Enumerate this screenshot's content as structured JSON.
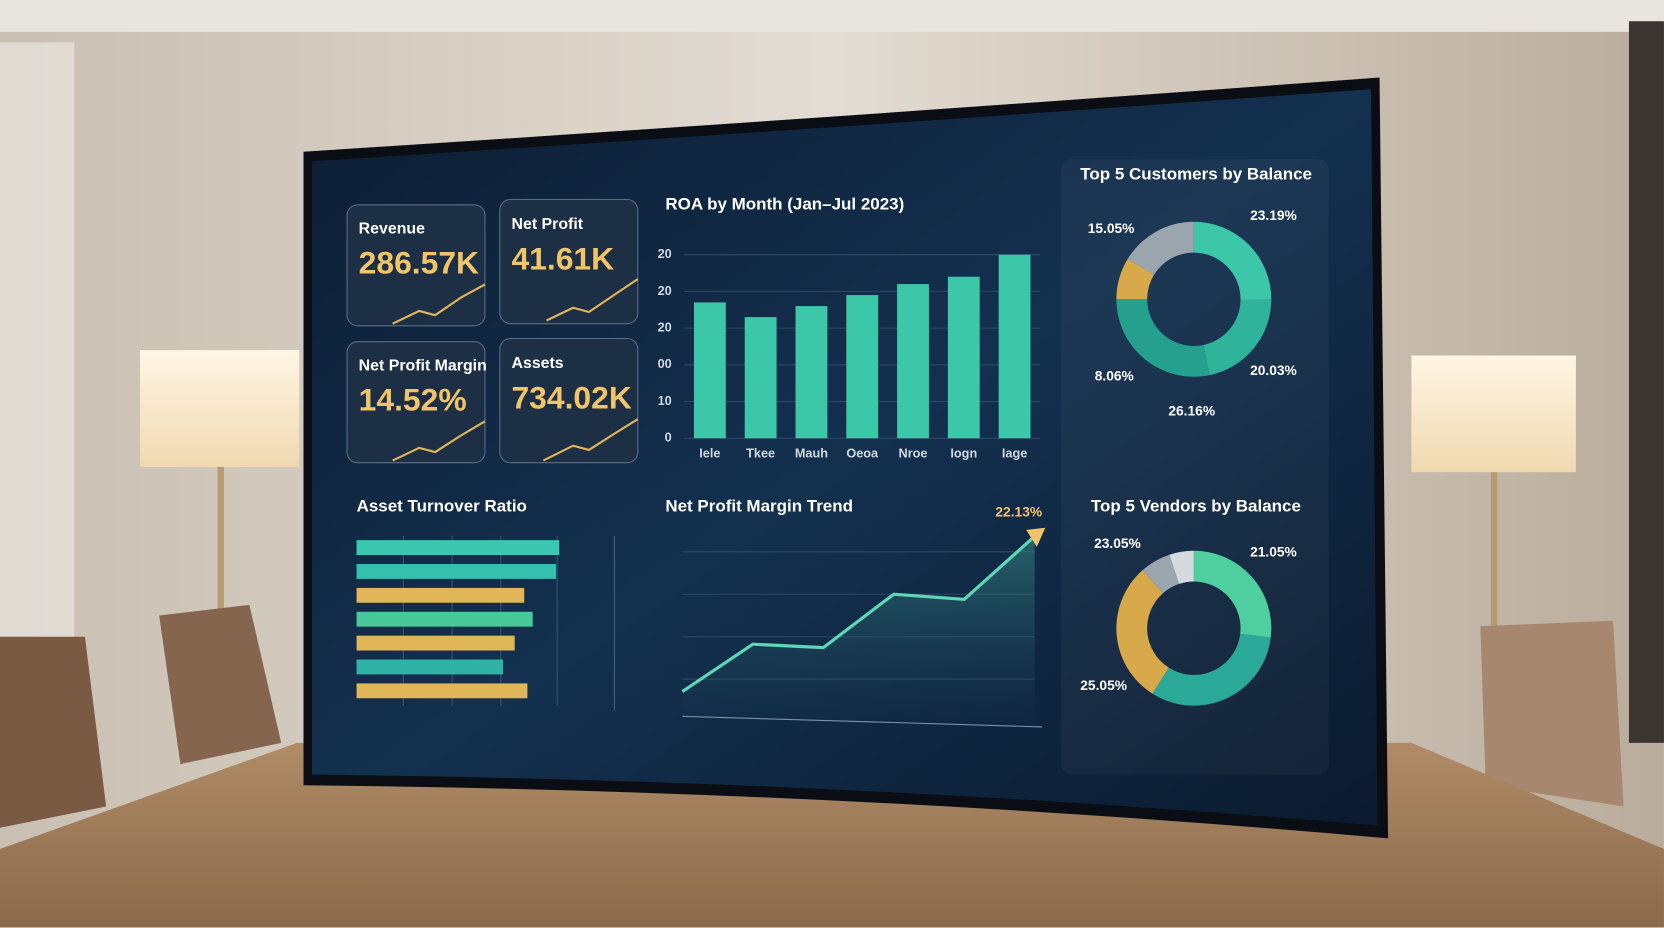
{
  "kpis": [
    {
      "label": "Revenue",
      "value": "286.57K"
    },
    {
      "label": "Net Profit",
      "value": "41.61K"
    },
    {
      "label": "Net Profit Margin",
      "value": "14.52%"
    },
    {
      "label": "Assets",
      "value": "734.02K"
    }
  ],
  "chart_data": [
    {
      "type": "bar",
      "title": "ROA by Month (Jan–Jul 2023)",
      "categories": [
        "Iele",
        "Tkee",
        "Mauh",
        "Oeoa",
        "Nroe",
        "Iogn",
        "Iage"
      ],
      "values": [
        37,
        33,
        36,
        39,
        42,
        44,
        50
      ],
      "color": "#3cc7a8",
      "ylim": [
        0,
        50
      ],
      "yticks": [
        0,
        10,
        {
          "value": 20,
          "label": "00"
        },
        {
          "value": 30,
          "label": "20"
        },
        {
          "value": 40,
          "label": "20"
        },
        {
          "value": 50,
          "label": "20"
        }
      ],
      "grid": true
    },
    {
      "type": "hbar",
      "title": "Asset Turnover Ratio",
      "values": [
        191,
        188,
        158,
        166,
        149,
        138,
        161
      ],
      "colors": [
        "#3cc7b0",
        "#35bfae",
        "#e0b658",
        "#47c99a",
        "#e0b658",
        "#2fb3a6",
        "#e0b658"
      ],
      "xlim": [
        0,
        200
      ]
    },
    {
      "type": "line",
      "title": "Net Profit Margin Trend",
      "values": [
        4.1,
        9.6,
        9.2,
        15.4,
        14.8,
        22.13
      ],
      "color": "#5fd6b6",
      "annotation": "22.13%",
      "ylim": [
        0,
        25
      ]
    },
    {
      "type": "donut",
      "title": "Top 5 Customers by Balance",
      "segments": [
        {
          "value": 23.19,
          "label": "23.19%",
          "color": "#3cc7a8"
        },
        {
          "value": 20.03,
          "label": "20.03%",
          "color": "#2fb39a"
        },
        {
          "value": 26.16,
          "label": "26.16%",
          "color": "#26a08e"
        },
        {
          "value": 8.06,
          "label": "8.06%",
          "color": "#d8a94b"
        },
        {
          "value": 15.05,
          "label": "15.05%",
          "color": "#9aa5ae"
        }
      ]
    },
    {
      "type": "donut",
      "title": "Top 5 Vendors by Balance",
      "segments": [
        {
          "value": 21.05,
          "label": "21.05%",
          "color": "#4fcf9f"
        },
        {
          "value": 25.05,
          "label": "25.05%",
          "color": "#2aa898"
        },
        {
          "value": 23.05,
          "label": "23.05%",
          "color": "#d8a94b"
        },
        {
          "value": 5,
          "color": "#9aa5ae"
        },
        {
          "value": 4,
          "color": "#d3dae0"
        }
      ]
    }
  ]
}
